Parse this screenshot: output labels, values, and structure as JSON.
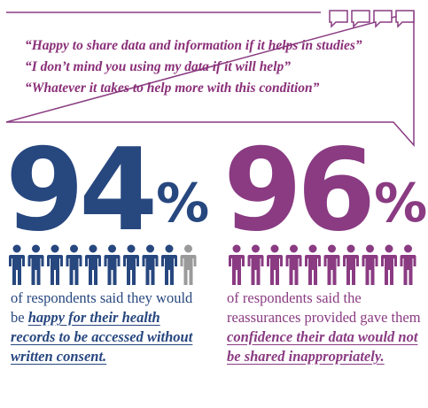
{
  "quotes": [
    "“Happy to share data and information if it helps in studies”",
    "“I don’t mind you using my data if it will help”",
    "“Whatever it takes to help more with this condition”"
  ],
  "stats": [
    {
      "number": "94",
      "percent_sign": "%",
      "value_percent": 94,
      "people_highlighted": 9,
      "people_total": 10,
      "color": "#27477f",
      "muted_color": "#9a9a9a",
      "caption_plain": "of respondents said they would be ",
      "caption_emphasis": "happy for their health records to be accessed without written consent."
    },
    {
      "number": "96",
      "percent_sign": "%",
      "value_percent": 96,
      "people_highlighted": 10,
      "people_total": 10,
      "color": "#8a3b82",
      "muted_color": "#8a3b82",
      "caption_plain": "of respondents said the reassurances provided gave them ",
      "caption_emphasis": "confidence their data would not be shared inappropriately."
    }
  ],
  "colors": {
    "quote_text": "#8a2f78",
    "frame": "#8a3b82"
  },
  "icons": [
    "speech-bubble-icon",
    "person-icon"
  ]
}
